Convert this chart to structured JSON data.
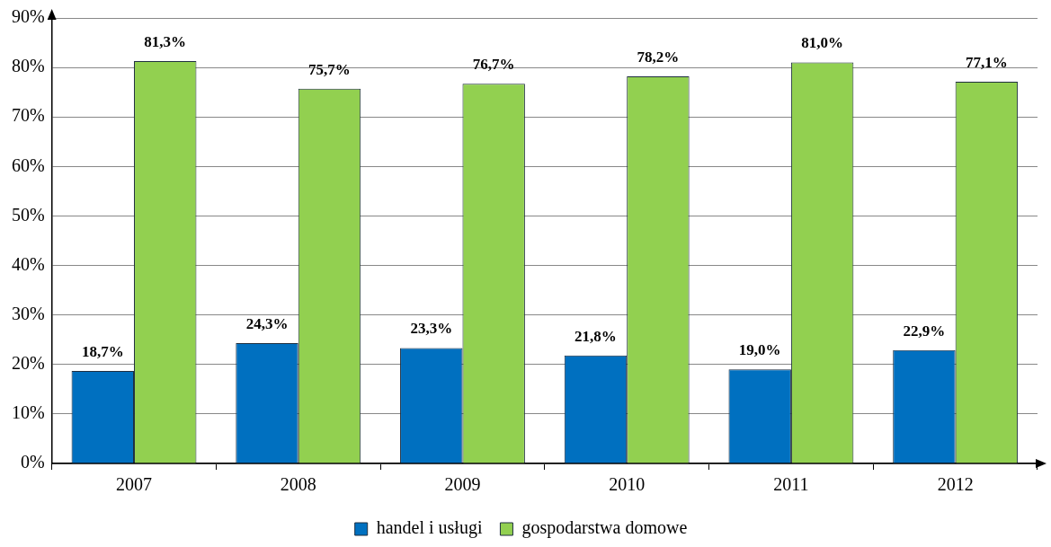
{
  "chart_data": {
    "type": "bar",
    "categories": [
      "2007",
      "2008",
      "2009",
      "2010",
      "2011",
      "2012"
    ],
    "series": [
      {
        "name": "handel i usługi",
        "color": "#0070c0",
        "values": [
          18.7,
          24.3,
          23.3,
          21.8,
          19.0,
          22.9
        ],
        "value_labels": [
          "18,7%",
          "24,3%",
          "23,3%",
          "21,8%",
          "19,0%",
          "22,9%"
        ]
      },
      {
        "name": "gospodarstwa domowe",
        "color": "#92d050",
        "values": [
          81.3,
          75.7,
          76.7,
          78.2,
          81.0,
          77.1
        ],
        "value_labels": [
          "81,3%",
          "75,7%",
          "76,7%",
          "78,2%",
          "81,0%",
          "77,1%"
        ]
      }
    ],
    "ylim": [
      0,
      90
    ],
    "yticks": [
      {
        "value": 0,
        "label": "0%"
      },
      {
        "value": 10,
        "label": "10%"
      },
      {
        "value": 20,
        "label": "20%"
      },
      {
        "value": 30,
        "label": "30%"
      },
      {
        "value": 40,
        "label": "40%"
      },
      {
        "value": 50,
        "label": "50%"
      },
      {
        "value": 60,
        "label": "60%"
      },
      {
        "value": 70,
        "label": "70%"
      },
      {
        "value": 80,
        "label": "80%"
      },
      {
        "value": 90,
        "label": "90%"
      }
    ],
    "grid": "y",
    "legend": "bottom"
  }
}
